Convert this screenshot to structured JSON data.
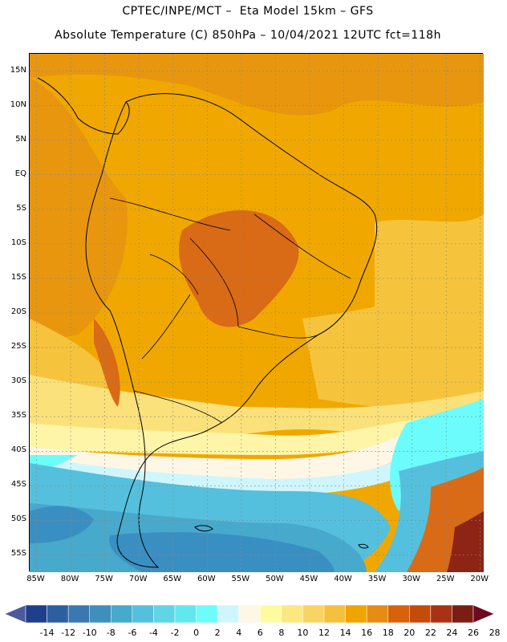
{
  "header": {
    "line1": "CPTEC/INPE/MCT –  Eta Model 15km – GFS",
    "line2": "Absolute Temperature (C) 850hPa – 10/04/2021 12UTC fct=118h"
  },
  "map": {
    "lon_range": [
      -86,
      -19.5
    ],
    "lat_range": [
      -57.5,
      17.5
    ],
    "lat_labels": [
      "15N",
      "10N",
      "5N",
      "EQ",
      "5S",
      "10S",
      "15S",
      "20S",
      "25S",
      "30S",
      "35S",
      "40S",
      "45S",
      "50S",
      "55S"
    ],
    "lat_values": [
      15,
      10,
      5,
      0,
      -5,
      -10,
      -15,
      -20,
      -25,
      -30,
      -35,
      -40,
      -45,
      -50,
      -55
    ],
    "lon_labels": [
      "85W",
      "80W",
      "75W",
      "70W",
      "65W",
      "60W",
      "55W",
      "50W",
      "45W",
      "40W",
      "35W",
      "30W",
      "25W",
      "20W"
    ],
    "lon_values": [
      -85,
      -80,
      -75,
      -70,
      -65,
      -60,
      -55,
      -50,
      -45,
      -40,
      -35,
      -30,
      -25,
      -20
    ]
  },
  "colorbar": {
    "labels": [
      "-14",
      "-12",
      "-10",
      "-8",
      "-6",
      "-4",
      "-2",
      "0",
      "2",
      "4",
      "6",
      "8",
      "10",
      "12",
      "14",
      "16",
      "18",
      "20",
      "22",
      "24",
      "26",
      "28"
    ],
    "colors": [
      "#4b5a9a",
      "#1e3f8a",
      "#2c5f9e",
      "#3a78b0",
      "#3f8fbd",
      "#47a9cc",
      "#55c0dd",
      "#5fd5e6",
      "#63e7ee",
      "#6cfcfc",
      "#cff6fc",
      "#fff7e6",
      "#fffaa0",
      "#fbe880",
      "#f7d464",
      "#f5c03c",
      "#f0a400",
      "#e58c14",
      "#d8620c",
      "#c44b08",
      "#aa3214",
      "#7a1e14",
      "#6e0a1e"
    ]
  },
  "legend_colors": {
    "warm_core": "#d96a16",
    "orange": "#e8960e",
    "amber": "#f0a800",
    "gold": "#f6c43c",
    "light_yellow": "#fbe17a",
    "pale_yellow": "#fff5a8",
    "cream": "#fff7e6",
    "pale_cyan": "#cff6fc",
    "cyan": "#6cfcfc",
    "light_blue": "#55c0dd",
    "mid_blue": "#47a9cc",
    "dark_blue": "#3a8fc2",
    "deep_red": "#8e2414"
  }
}
